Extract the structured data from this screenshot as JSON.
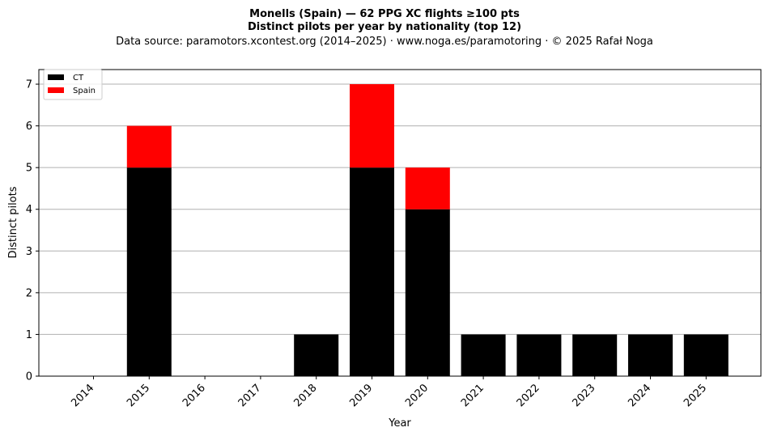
{
  "chart_data": {
    "type": "bar",
    "stacked": true,
    "title": "Monells (Spain)  —  62 PPG XC flights ≥100 pts",
    "subtitle": "Distinct pilots per year by nationality (top 12)",
    "source": "Data source: paramotors.xcontest.org (2014–2025)  ·  www.noga.es/paramotoring  ·  © 2025 Rafał Noga",
    "xlabel": "Year",
    "ylabel": "Distinct pilots",
    "ylim": [
      0,
      7.35
    ],
    "yticks": [
      0,
      1,
      2,
      3,
      4,
      5,
      6,
      7
    ],
    "grid": "y",
    "legend_position": "top-left",
    "categories": [
      "2014",
      "2015",
      "2016",
      "2017",
      "2018",
      "2019",
      "2020",
      "2021",
      "2022",
      "2023",
      "2024",
      "2025"
    ],
    "series": [
      {
        "name": "CT",
        "color": "#000000",
        "values": [
          0,
          5,
          0,
          0,
          1,
          5,
          4,
          1,
          1,
          1,
          1,
          1
        ]
      },
      {
        "name": "Spain",
        "color": "#ff0000",
        "values": [
          0,
          1,
          0,
          0,
          0,
          2,
          1,
          0,
          0,
          0,
          0,
          0
        ]
      }
    ]
  }
}
